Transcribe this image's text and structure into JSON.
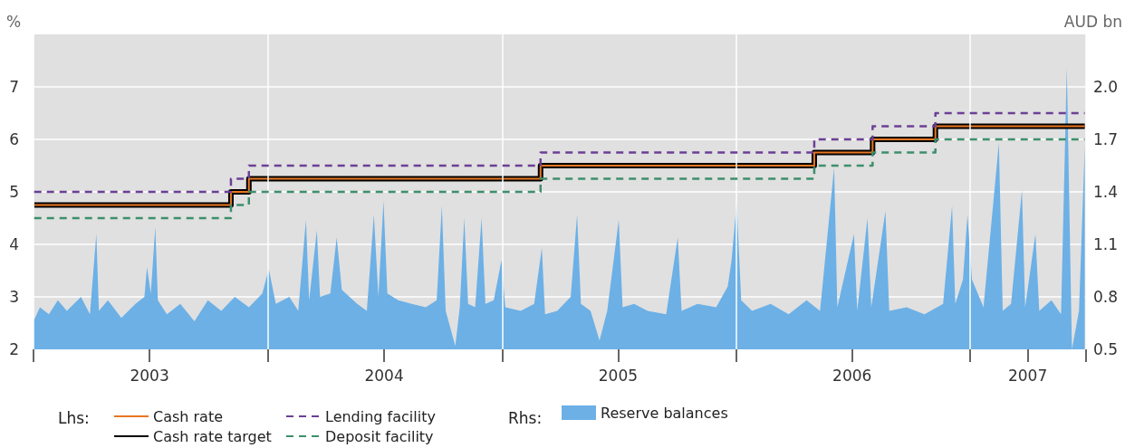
{
  "chart_data": {
    "type": "step",
    "ylabel": "%",
    "y2label": "AUD bn",
    "annotations": [
      "Lhs:",
      "Rhs:"
    ],
    "xlim": [
      "2003-01-01",
      "2007-07-01"
    ],
    "xticks": [
      {
        "value": "2003-01-01",
        "label": null
      },
      {
        "value": "2003-07-01",
        "label": "2003"
      },
      {
        "value": "2004-01-01",
        "label": null
      },
      {
        "value": "2004-07-01",
        "label": "2004"
      },
      {
        "value": "2005-01-01",
        "label": null
      },
      {
        "value": "2005-07-01",
        "label": "2005"
      },
      {
        "value": "2006-01-01",
        "label": null
      },
      {
        "value": "2006-07-01",
        "label": "2006"
      },
      {
        "value": "2007-01-01",
        "label": null
      },
      {
        "value": "2007-04-01",
        "label": "2007"
      },
      {
        "value": "2007-07-01",
        "label": null
      }
    ],
    "ylim": [
      2,
      8
    ],
    "yticks": [
      2,
      3,
      4,
      5,
      6,
      7
    ],
    "y2lim": [
      0.5,
      2.3
    ],
    "y2ticks": [
      {
        "value": 0.5,
        "label": "0.5"
      },
      {
        "value": 0.8,
        "label": "0.8"
      },
      {
        "value": 1.1,
        "label": "1.1"
      },
      {
        "value": 1.4,
        "label": "1.4"
      },
      {
        "value": 1.7,
        "label": "1.7"
      },
      {
        "value": 2.0,
        "label": "2.0"
      }
    ],
    "grid": true,
    "legend": "bottom",
    "marker": "none",
    "series": [
      {
        "name": "Reserve balances",
        "type": "area",
        "axis": "y2",
        "color": "#6cb0e6",
        "x": [
          "2003-01-01",
          "2003-01-11",
          "2003-01-25",
          "2003-02-08",
          "2003-02-22",
          "2003-03-16",
          "2003-03-30",
          "2003-04-09",
          "2003-04-13",
          "2003-04-27",
          "2003-05-18",
          "2003-06-09",
          "2003-06-23",
          "2003-06-27",
          "2003-07-03",
          "2003-07-10",
          "2003-07-14",
          "2003-07-28",
          "2003-08-18",
          "2003-09-09",
          "2003-09-30",
          "2003-10-21",
          "2003-11-11",
          "2003-12-03",
          "2003-12-24",
          "2004-01-03",
          "2004-01-14",
          "2004-02-04",
          "2004-02-18",
          "2004-03-01",
          "2004-03-06",
          "2004-03-18",
          "2004-03-23",
          "2004-04-08",
          "2004-04-18",
          "2004-04-26",
          "2004-05-20",
          "2004-06-04",
          "2004-06-15",
          "2004-06-22",
          "2004-06-30",
          "2004-07-06",
          "2004-07-23",
          "2004-08-13",
          "2004-09-04",
          "2004-09-21",
          "2004-09-29",
          "2004-10-05",
          "2004-10-20",
          "2004-10-27",
          "2004-11-03",
          "2004-11-09",
          "2004-11-20",
          "2004-11-30",
          "2004-12-06",
          "2004-12-19",
          "2004-12-31",
          "2005-01-06",
          "2005-01-30",
          "2005-02-20",
          "2005-03-04",
          "2005-03-09",
          "2005-03-28",
          "2005-04-18",
          "2005-04-28",
          "2005-05-04",
          "2005-05-19",
          "2005-06-02",
          "2005-06-14",
          "2005-07-02",
          "2005-07-08",
          "2005-07-26",
          "2005-08-16",
          "2005-09-14",
          "2005-10-02",
          "2005-10-08",
          "2005-11-02",
          "2005-12-01",
          "2005-12-19",
          "2005-12-25",
          "2006-01-02",
          "2006-01-09",
          "2006-01-26",
          "2006-02-24",
          "2006-03-24",
          "2006-04-21",
          "2006-05-12",
          "2006-06-03",
          "2006-06-08",
          "2006-07-04",
          "2006-07-09",
          "2006-07-25",
          "2006-07-31",
          "2006-08-22",
          "2006-08-28",
          "2006-09-24",
          "2006-10-22",
          "2006-11-20",
          "2006-12-04",
          "2006-12-09",
          "2006-12-21",
          "2006-12-28",
          "2007-01-04",
          "2007-01-22",
          "2007-02-15",
          "2007-02-21",
          "2007-03-06",
          "2007-03-23",
          "2007-03-28",
          "2007-04-13",
          "2007-04-19",
          "2007-05-08",
          "2007-05-23",
          "2007-06-01",
          "2007-06-09",
          "2007-06-20",
          "2007-06-29"
        ],
        "values": [
          0.66,
          0.74,
          0.7,
          0.78,
          0.72,
          0.8,
          0.7,
          1.16,
          0.72,
          0.78,
          0.68,
          0.76,
          0.8,
          0.97,
          0.82,
          1.2,
          0.78,
          0.7,
          0.76,
          0.66,
          0.78,
          0.72,
          0.8,
          0.74,
          0.82,
          0.96,
          0.76,
          0.8,
          0.72,
          1.24,
          0.78,
          1.18,
          0.8,
          0.82,
          1.14,
          0.84,
          0.76,
          0.72,
          1.27,
          0.8,
          1.35,
          0.82,
          0.78,
          0.76,
          0.74,
          0.78,
          1.32,
          0.72,
          0.52,
          0.74,
          1.25,
          0.76,
          0.74,
          1.25,
          0.76,
          0.78,
          1.01,
          0.74,
          0.72,
          0.76,
          1.08,
          0.7,
          0.72,
          0.8,
          1.27,
          0.76,
          0.72,
          0.55,
          0.72,
          1.24,
          0.74,
          0.76,
          0.72,
          0.7,
          1.14,
          0.72,
          0.76,
          0.74,
          0.86,
          1.01,
          1.34,
          0.78,
          0.72,
          0.76,
          0.7,
          0.78,
          0.72,
          1.54,
          0.74,
          1.16,
          0.72,
          1.25,
          0.74,
          1.29,
          0.72,
          0.74,
          0.7,
          0.76,
          1.32,
          0.76,
          0.9,
          1.27,
          0.9,
          0.74,
          1.68,
          0.72,
          0.76,
          1.41,
          0.74,
          1.16,
          0.72,
          0.78,
          0.7,
          2.11,
          0.5,
          0.72,
          1.66
        ]
      },
      {
        "name": "Cash rate target",
        "color": "#000000",
        "line_style": "solid",
        "x": [
          "2003-01-02",
          "2003-11-05",
          "2003-12-03",
          "2005-03-02",
          "2006-05-03",
          "2006-08-02",
          "2006-11-08",
          "2007-06-29"
        ],
        "values": [
          4.75,
          5,
          5.25,
          5.5,
          5.75,
          6,
          6.25,
          6.25
        ]
      },
      {
        "name": "Cash rate",
        "color": "#e87722",
        "line_style": "solid",
        "x": [
          "2003-01-02",
          "2003-11-05",
          "2003-12-03",
          "2005-03-02",
          "2006-05-03",
          "2006-08-02",
          "2006-11-08",
          "2007-06-29"
        ],
        "values": [
          4.75,
          5,
          5.25,
          5.5,
          5.75,
          6,
          6.25,
          6.25
        ]
      },
      {
        "name": "Lending facility",
        "color": "#6b3f96",
        "line_style": "dashed",
        "x": [
          "2003-01-02",
          "2003-11-05",
          "2003-12-03",
          "2005-03-02",
          "2006-05-03",
          "2006-08-02",
          "2006-11-08",
          "2007-06-29"
        ],
        "values": [
          5,
          5.25,
          5.5,
          5.75,
          6,
          6.25,
          6.5,
          6.5
        ]
      },
      {
        "name": "Deposit facility",
        "color": "#3d8f6c",
        "line_style": "dashed",
        "x": [
          "2003-01-02",
          "2003-11-05",
          "2003-12-03",
          "2005-03-02",
          "2006-05-03",
          "2006-08-02",
          "2006-11-08",
          "2007-06-29"
        ],
        "values": [
          4.5,
          4.75,
          5,
          5.25,
          5.5,
          5.75,
          6,
          6
        ]
      }
    ]
  }
}
